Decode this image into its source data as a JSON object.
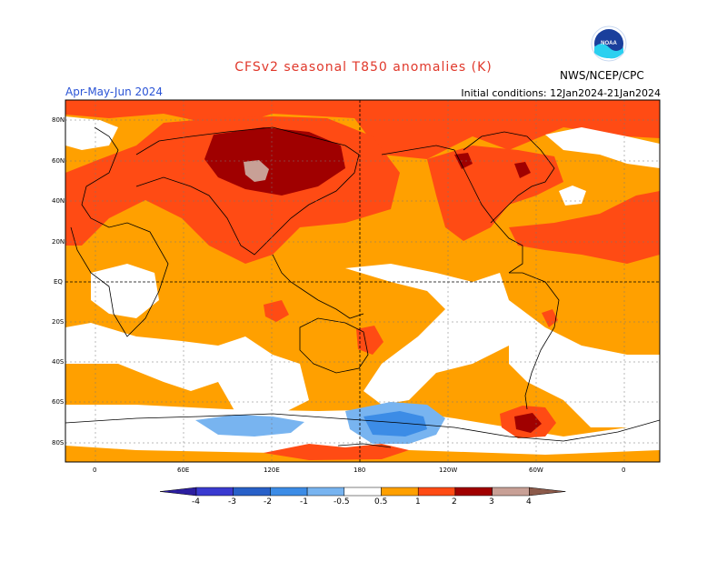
{
  "title": "CFSv2 seasonal T850 anomalies (K)",
  "period": "Apr-May-Jun 2024",
  "initial_conditions": "Initial conditions: 12Jan2024-21Jan2024",
  "agency": "NWS/NCEP/CPC",
  "logo_text": "NOAA",
  "lat_labels": [
    "80N",
    "60N",
    "40N",
    "20N",
    "EQ",
    "20S",
    "40S",
    "60S",
    "80S"
  ],
  "lon_labels": [
    "0",
    "60E",
    "120E",
    "180",
    "120W",
    "60W",
    "0"
  ],
  "colorbar": {
    "labels": [
      "-4",
      "-3",
      "-2",
      "-1",
      "-0.5",
      "0.5",
      "1",
      "2",
      "3",
      "4"
    ],
    "colors": [
      "#2c1ea0",
      "#3a3ad0",
      "#2860c8",
      "#3c8ce6",
      "#78b4f0",
      "#ffffff",
      "#ffa000",
      "#ff4b14",
      "#a00000",
      "#c8a096",
      "#8c5a4a"
    ]
  }
}
